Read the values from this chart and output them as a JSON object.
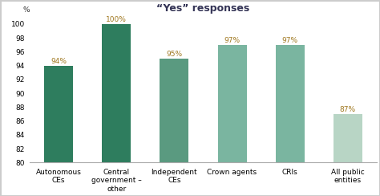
{
  "categories": [
    "Autonomous\nCEs",
    "Central\ngovernment –\nother",
    "Independent\nCEs",
    "Crown agents",
    "CRIs",
    "All public\nentities"
  ],
  "values": [
    94,
    100,
    95,
    97,
    97,
    87
  ],
  "bar_colors": [
    "#2e7d5e",
    "#2e7d5e",
    "#5a9a80",
    "#7ab5a0",
    "#7ab5a0",
    "#b8d5c5"
  ],
  "bar_labels": [
    "94%",
    "100%",
    "95%",
    "97%",
    "97%",
    "87%"
  ],
  "title": "“Yes” responses",
  "ylabel": "%",
  "ylim": [
    80,
    101
  ],
  "yticks": [
    80,
    82,
    84,
    86,
    88,
    90,
    92,
    94,
    96,
    98,
    100
  ],
  "title_fontsize": 9,
  "label_fontsize": 6.5,
  "tick_fontsize": 6.5,
  "bar_label_fontsize": 6.5,
  "bar_label_color": "#a07820",
  "background_color": "#ffffff",
  "border_color": "#cccccc",
  "title_color": "#333355"
}
